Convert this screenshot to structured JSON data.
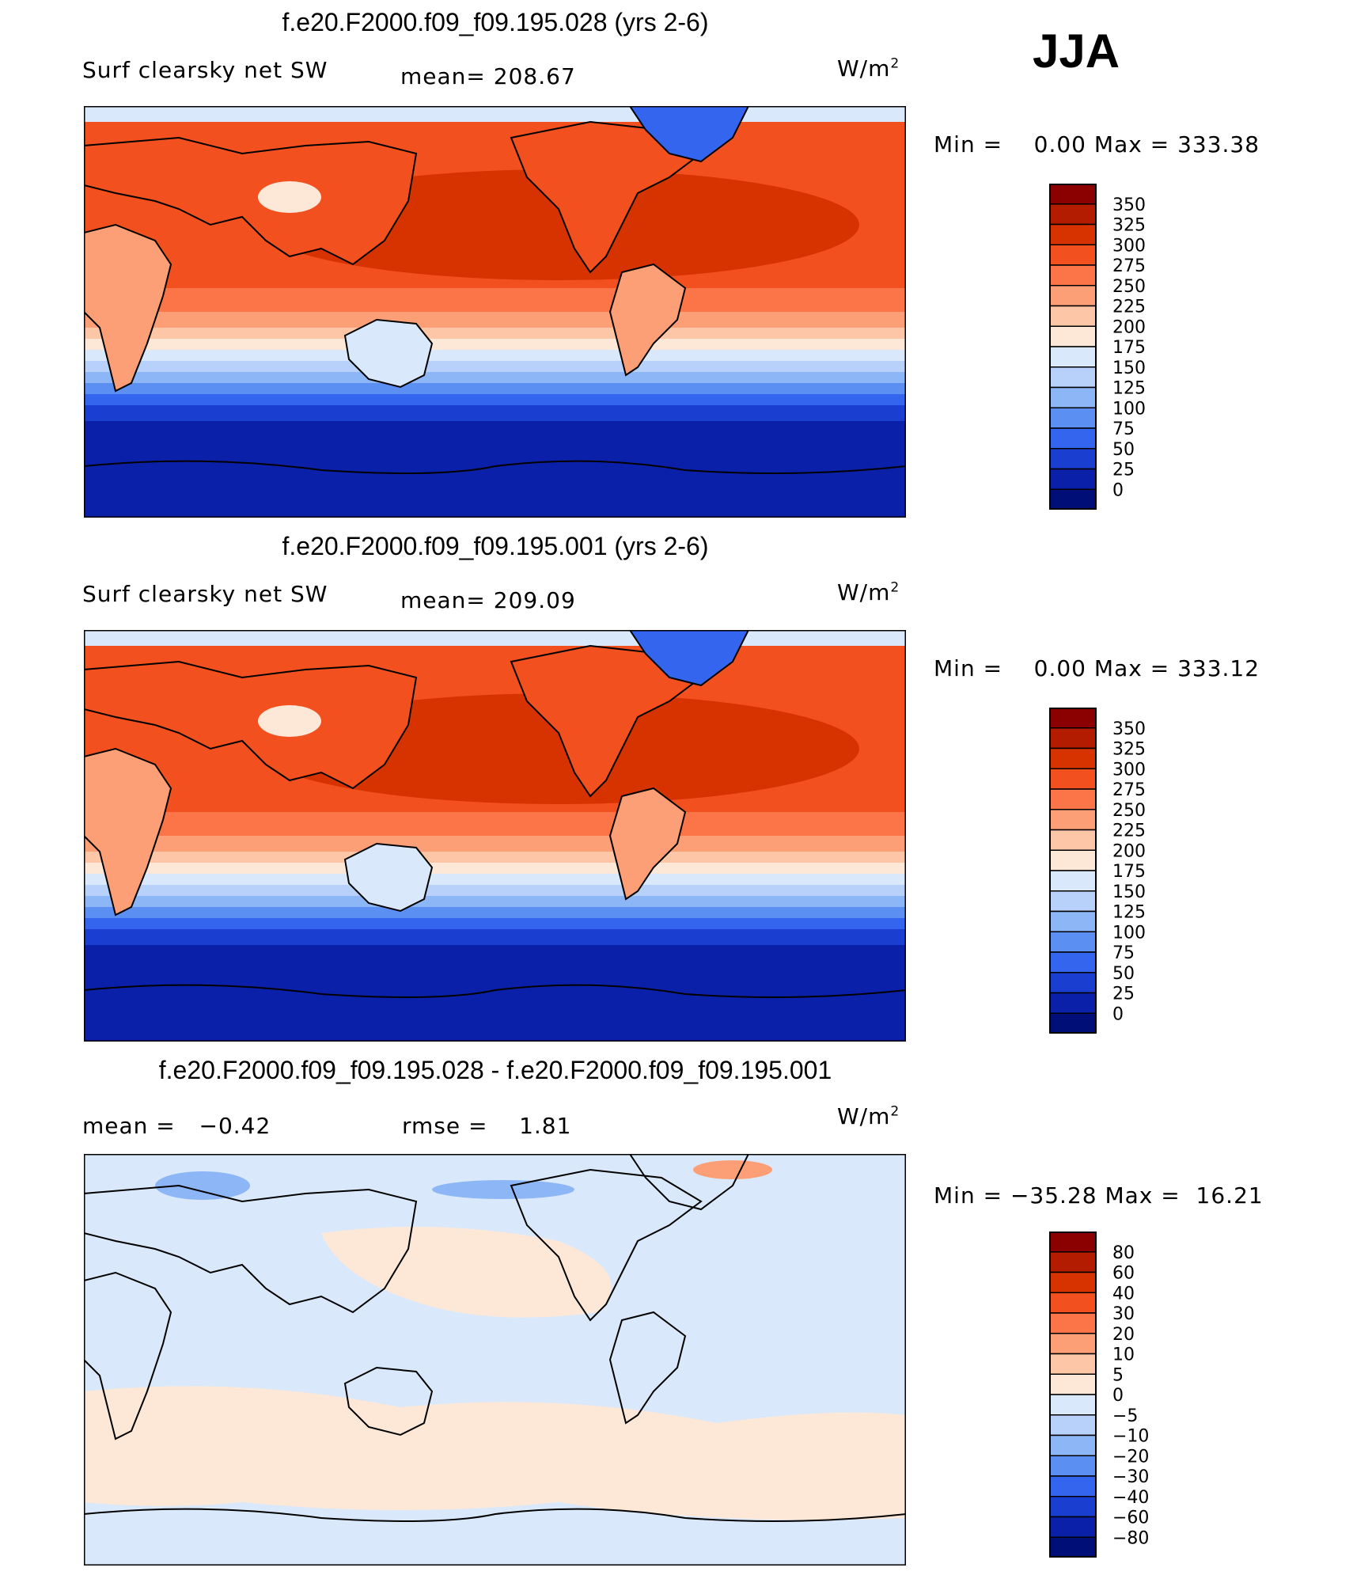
{
  "season": "JJA",
  "panels": [
    {
      "title": "f.e20.F2000.f09_f09.195.028 (yrs 2-6)",
      "left_label": "Surf clearsky net SW",
      "stat_label": "mean=",
      "stat_value": "208.67",
      "units": "W/m",
      "units_exp": "2",
      "min_label": "Min =",
      "min_value": "0.00",
      "max_label": "Max =",
      "max_value": "333.38"
    },
    {
      "title": "f.e20.F2000.f09_f09.195.001 (yrs 2-6)",
      "left_label": "Surf clearsky net SW",
      "stat_label": "mean=",
      "stat_value": "209.09",
      "units": "W/m",
      "units_exp": "2",
      "min_label": "Min =",
      "min_value": "0.00",
      "max_label": "Max =",
      "max_value": "333.12"
    },
    {
      "title": "f.e20.F2000.f09_f09.195.028 - f.e20.F2000.f09_f09.195.001",
      "left_label": "mean =",
      "left_value": "−0.42",
      "stat_label": "rmse =",
      "stat_value": "1.81",
      "units": "W/m",
      "units_exp": "2",
      "min_label": "Min =",
      "min_value": "−35.28",
      "max_label": "Max =",
      "max_value": "16.21"
    }
  ],
  "chart_data": [
    {
      "type": "heatmap",
      "title": "f.e20.F2000.f09_f09.195.028 (yrs 2-6)",
      "variable": "Surf clearsky net SW",
      "mean": 208.67,
      "units": "W/m2",
      "min": 0.0,
      "max": 333.38,
      "colorbar_levels": [
        350,
        325,
        300,
        275,
        250,
        225,
        200,
        175,
        150,
        125,
        100,
        75,
        50,
        25,
        0
      ],
      "colors": [
        "#8b0000",
        "#b41c00",
        "#d73300",
        "#f2501e",
        "#fb7548",
        "#fc9f76",
        "#fdc6a6",
        "#fde8d8",
        "#d9e9fb",
        "#b7d1fa",
        "#8db6f7",
        "#5c8ff2",
        "#3365ee",
        "#1a3fd0",
        "#0a20a8",
        "#000e78"
      ]
    },
    {
      "type": "heatmap",
      "title": "f.e20.F2000.f09_f09.195.001 (yrs 2-6)",
      "variable": "Surf clearsky net SW",
      "mean": 209.09,
      "units": "W/m2",
      "min": 0.0,
      "max": 333.12,
      "colorbar_levels": [
        350,
        325,
        300,
        275,
        250,
        225,
        200,
        175,
        150,
        125,
        100,
        75,
        50,
        25,
        0
      ],
      "colors": [
        "#8b0000",
        "#b41c00",
        "#d73300",
        "#f2501e",
        "#fb7548",
        "#fc9f76",
        "#fdc6a6",
        "#fde8d8",
        "#d9e9fb",
        "#b7d1fa",
        "#8db6f7",
        "#5c8ff2",
        "#3365ee",
        "#1a3fd0",
        "#0a20a8",
        "#000e78"
      ]
    },
    {
      "type": "heatmap",
      "title": "f.e20.F2000.f09_f09.195.028 - f.e20.F2000.f09_f09.195.001",
      "mean": -0.42,
      "rmse": 1.81,
      "units": "W/m2",
      "min": -35.28,
      "max": 16.21,
      "colorbar_levels": [
        80,
        60,
        40,
        30,
        20,
        10,
        5,
        0,
        -5,
        -10,
        -20,
        -30,
        -40,
        -60,
        -80
      ],
      "colors": [
        "#8b0000",
        "#b41c00",
        "#d73300",
        "#f2501e",
        "#fb7548",
        "#fc9f76",
        "#fdc6a6",
        "#fde8d8",
        "#d9e9fb",
        "#b7d1fa",
        "#8db6f7",
        "#5c8ff2",
        "#3365ee",
        "#1a3fd0",
        "#0a20a8",
        "#000e78"
      ]
    }
  ]
}
